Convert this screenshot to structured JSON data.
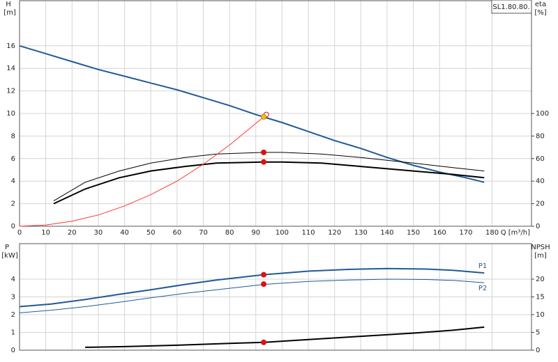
{
  "chart_data": [
    {
      "type": "line",
      "title": "SL1.80.80.",
      "ylabel": "H",
      "ylabel_unit": "[m]",
      "y2label": "eta",
      "y2label_unit": "[%]",
      "xlabel": "Q [m³/h]",
      "xlim": [
        0,
        195
      ],
      "xticks": [
        0,
        10,
        20,
        30,
        40,
        50,
        60,
        70,
        80,
        90,
        100,
        110,
        120,
        130,
        140,
        150,
        160,
        170,
        180
      ],
      "ylim": [
        0,
        20
      ],
      "yticks": [
        0,
        2,
        4,
        6,
        8,
        10,
        12,
        14,
        16
      ],
      "y2lim": [
        0,
        200
      ],
      "y2ticks": [
        0,
        20,
        40,
        60,
        80,
        100
      ],
      "grid": true,
      "series": [
        {
          "color": "#1f5a96",
          "x": [
            0,
            10,
            20,
            30,
            40,
            50,
            60,
            70,
            80,
            90,
            100,
            110,
            120,
            130,
            140,
            150,
            160,
            170,
            177
          ],
          "values": [
            16,
            15.3,
            14.6,
            13.9,
            13.3,
            12.7,
            12.1,
            11.4,
            10.7,
            9.9,
            9.2,
            8.4,
            7.6,
            6.9,
            6.1,
            5.4,
            4.8,
            4.3,
            3.9
          ]
        },
        {
          "color": "#000000",
          "axis": "y2",
          "x": [
            13,
            25,
            38,
            50,
            63,
            75,
            93,
            100,
            115,
            130,
            150,
            165,
            177
          ],
          "values": [
            22.5,
            39,
            49,
            56,
            61,
            64,
            65.5,
            65.5,
            64,
            61,
            56,
            52,
            49
          ]
        },
        {
          "color": "#000000",
          "axis": "y2",
          "x": [
            13,
            25,
            38,
            50,
            63,
            75,
            93,
            100,
            115,
            130,
            150,
            165,
            177
          ],
          "values": [
            20,
            33,
            43,
            49,
            53,
            56,
            57,
            57,
            56,
            53,
            49,
            46,
            43
          ]
        },
        {
          "color": "#ff3333",
          "x": [
            0,
            10,
            20,
            30,
            40,
            50,
            60,
            70,
            80,
            93
          ],
          "values": [
            0,
            0.11,
            0.45,
            1.0,
            1.8,
            2.8,
            4.0,
            5.5,
            7.2,
            9.7
          ]
        }
      ],
      "points": [
        {
          "x": 93,
          "y": 65.5,
          "axis": "y2",
          "color": "#e01010",
          "edgecolor": "#e01010"
        },
        {
          "x": 93,
          "y": 57,
          "axis": "y2",
          "color": "#e01010",
          "edgecolor": "#e01010"
        },
        {
          "x": 94,
          "y": 9.9,
          "color": "#ffffff",
          "edgecolor": "#e01010"
        },
        {
          "x": 93,
          "y": 9.7,
          "color": "#f5c400",
          "edgecolor": "#c08000"
        }
      ]
    },
    {
      "type": "line",
      "ylabel": "P",
      "ylabel_unit": "[kW]",
      "y2label": "NPSH",
      "y2label_unit": "[m]",
      "xlim": [
        0,
        195
      ],
      "ylim": [
        0,
        6
      ],
      "yticks": [
        0,
        1,
        2,
        3,
        4
      ],
      "y2lim": [
        0,
        30
      ],
      "y2ticks": [
        0,
        5,
        10,
        15,
        20
      ],
      "grid": true,
      "series": [
        {
          "name": "P1",
          "color": "#1f5a96",
          "x": [
            0,
            12,
            25,
            38,
            50,
            63,
            75,
            93,
            110,
            125,
            140,
            155,
            165,
            177
          ],
          "values": [
            2.45,
            2.6,
            2.85,
            3.15,
            3.4,
            3.7,
            3.95,
            4.25,
            4.45,
            4.55,
            4.6,
            4.57,
            4.5,
            4.35
          ]
        },
        {
          "name": "P2",
          "color": "#1f5a96",
          "x": [
            0,
            12,
            25,
            38,
            50,
            63,
            75,
            93,
            110,
            125,
            140,
            155,
            165,
            177
          ],
          "values": [
            2.1,
            2.25,
            2.45,
            2.7,
            2.95,
            3.2,
            3.4,
            3.7,
            3.87,
            3.95,
            4.0,
            3.98,
            3.93,
            3.8
          ]
        },
        {
          "color": "#000000",
          "axis": "y2",
          "x": [
            25,
            40,
            60,
            80,
            93,
            110,
            130,
            150,
            165,
            177
          ],
          "values": [
            0.8,
            1.0,
            1.4,
            1.9,
            2.2,
            3.0,
            3.9,
            4.8,
            5.6,
            6.5
          ]
        }
      ],
      "points": [
        {
          "x": 93,
          "y": 4.25,
          "color": "#e01010",
          "edgecolor": "#e01010"
        },
        {
          "x": 93,
          "y": 3.72,
          "color": "#e01010",
          "edgecolor": "#e01010"
        },
        {
          "x": 93,
          "y": 2.2,
          "axis": "y2",
          "color": "#e01010",
          "edgecolor": "#e01010"
        }
      ]
    }
  ]
}
